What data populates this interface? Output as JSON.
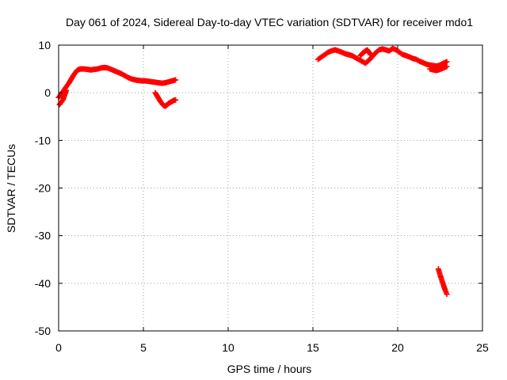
{
  "chart_data": {
    "type": "scatter",
    "title": "Day 061 of 2024, Sidereal Day-to-day VTEC variation (SDTVAR) for receiver mdo1",
    "xlabel": "GPS time / hours",
    "ylabel": "SDTVAR / TECUs",
    "xlim": [
      0,
      25
    ],
    "ylim": [
      -50,
      10
    ],
    "xticks": [
      0,
      5,
      10,
      15,
      20,
      25
    ],
    "yticks": [
      -50,
      -40,
      -30,
      -20,
      -10,
      0,
      10
    ],
    "grid": true,
    "series": [
      {
        "name": "SDTVAR",
        "color": "#ff0000",
        "marker": "plus",
        "segments": [
          {
            "x": [
              0.0,
              0.1,
              0.2,
              0.3,
              0.4,
              0.5,
              0.6,
              0.7,
              0.8,
              0.9,
              1.0,
              1.1,
              1.2,
              1.3,
              1.5,
              1.7,
              1.9,
              2.1,
              2.3,
              2.5,
              2.7,
              2.9,
              3.1,
              3.3,
              3.5,
              3.7,
              3.9,
              4.1,
              4.3,
              4.5,
              4.7,
              4.9,
              5.1,
              5.3,
              5.5,
              5.7,
              5.9,
              6.1,
              6.3,
              6.5,
              6.7,
              6.9
            ],
            "y": [
              -1.0,
              -0.5,
              0.0,
              0.5,
              1.0,
              1.5,
              2.0,
              2.6,
              3.2,
              3.8,
              4.3,
              4.7,
              4.9,
              5.0,
              5.0,
              4.9,
              4.8,
              4.9,
              5.0,
              5.2,
              5.3,
              5.2,
              4.9,
              4.6,
              4.3,
              4.0,
              3.6,
              3.2,
              2.9,
              2.7,
              2.6,
              2.5,
              2.5,
              2.4,
              2.3,
              2.2,
              2.1,
              2.0,
              2.1,
              2.3,
              2.5,
              2.7
            ]
          },
          {
            "x": [
              0.05,
              0.15,
              0.25,
              0.35,
              0.45
            ],
            "y": [
              -2.5,
              -2.0,
              -1.5,
              -0.5,
              0.5
            ]
          },
          {
            "x": [
              5.7,
              5.8,
              5.9,
              6.0,
              6.1,
              6.2,
              6.3,
              6.4,
              6.5,
              6.6,
              6.7,
              6.8,
              6.9
            ],
            "y": [
              0.0,
              -0.6,
              -1.2,
              -1.8,
              -2.3,
              -2.7,
              -2.8,
              -2.5,
              -2.2,
              -2.0,
              -1.8,
              -1.6,
              -1.5
            ]
          },
          {
            "x": [
              15.3,
              15.5,
              15.7,
              15.9,
              16.1,
              16.3,
              16.5,
              16.7,
              16.9,
              17.1,
              17.3,
              17.5,
              17.7,
              17.9,
              18.1,
              18.3,
              18.5,
              18.7,
              18.9,
              19.1,
              19.3,
              19.5,
              19.7,
              19.9,
              20.1,
              20.3,
              20.5,
              20.7,
              20.9,
              21.1,
              21.3,
              21.5,
              21.7,
              21.9,
              22.1,
              22.3,
              22.5,
              22.7,
              22.9
            ],
            "y": [
              7.0,
              7.5,
              8.0,
              8.5,
              8.8,
              9.0,
              8.8,
              8.5,
              8.2,
              8.0,
              7.8,
              7.4,
              7.0,
              6.6,
              6.2,
              6.8,
              7.6,
              8.4,
              9.0,
              9.2,
              9.0,
              8.8,
              9.3,
              9.0,
              8.5,
              8.0,
              7.8,
              7.5,
              7.2,
              7.0,
              6.6,
              6.3,
              6.0,
              5.8,
              5.7,
              5.6,
              5.8,
              6.2,
              6.5
            ]
          },
          {
            "x": [
              17.8,
              17.9,
              18.0,
              18.1,
              18.2,
              18.3,
              18.4
            ],
            "y": [
              7.8,
              8.2,
              8.5,
              8.8,
              9.0,
              8.6,
              8.0
            ]
          },
          {
            "x": [
              21.9,
              22.1,
              22.3,
              22.5,
              22.7,
              22.9
            ],
            "y": [
              5.0,
              4.8,
              4.7,
              4.9,
              5.2,
              5.5
            ]
          },
          {
            "x": [
              22.4,
              22.5,
              22.6,
              22.7,
              22.8,
              22.9
            ],
            "y": [
              -37.0,
              -38.2,
              -39.3,
              -40.4,
              -41.4,
              -42.3
            ]
          }
        ]
      }
    ]
  }
}
